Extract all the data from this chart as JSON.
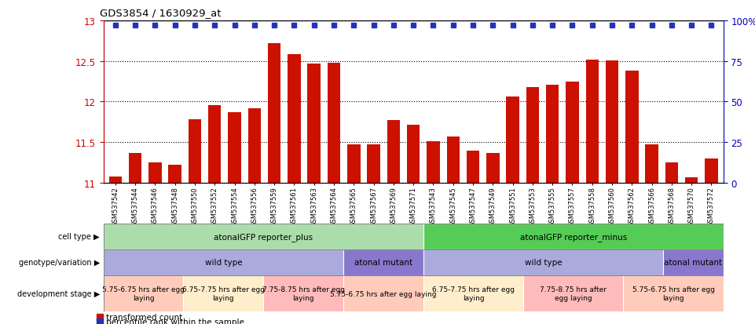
{
  "title": "GDS3854 / 1630929_at",
  "samples": [
    "GSM537542",
    "GSM537544",
    "GSM537546",
    "GSM537548",
    "GSM537550",
    "GSM537552",
    "GSM537554",
    "GSM537556",
    "GSM537559",
    "GSM537561",
    "GSM537563",
    "GSM537564",
    "GSM537565",
    "GSM537567",
    "GSM537569",
    "GSM537571",
    "GSM537543",
    "GSM537545",
    "GSM537547",
    "GSM537549",
    "GSM537551",
    "GSM537553",
    "GSM537555",
    "GSM537557",
    "GSM537558",
    "GSM537560",
    "GSM537562",
    "GSM537566",
    "GSM537568",
    "GSM537570",
    "GSM537572"
  ],
  "bar_values": [
    11.08,
    11.37,
    11.25,
    11.22,
    11.78,
    11.96,
    11.87,
    11.92,
    12.72,
    12.58,
    12.47,
    12.48,
    11.47,
    11.47,
    11.77,
    11.71,
    11.51,
    11.57,
    11.4,
    11.37,
    12.06,
    12.18,
    12.21,
    12.25,
    12.52,
    12.51,
    12.38,
    11.47,
    11.25,
    11.07,
    11.3
  ],
  "ylim_min": 11.0,
  "ylim_max": 13.0,
  "yticks_left": [
    11.0,
    11.5,
    12.0,
    12.5,
    13.0
  ],
  "ytick_left_labels": [
    "11",
    "11.5",
    "12",
    "12.5",
    "13"
  ],
  "yticks_right_vals": [
    0,
    25,
    50,
    75,
    100
  ],
  "ytick_right_labels": [
    "0",
    "25",
    "50",
    "75",
    "100%"
  ],
  "bar_color": "#cc1100",
  "dot_color": "#2233bb",
  "dotted_gridlines": [
    11.5,
    12.0,
    12.5
  ],
  "cell_type_rows": [
    {
      "label": "atonalGFP reporter_plus",
      "start": 0,
      "end": 16,
      "color": "#aaddaa"
    },
    {
      "label": "atonalGFP reporter_minus",
      "start": 16,
      "end": 31,
      "color": "#55cc55"
    }
  ],
  "genotype_rows": [
    {
      "label": "wild type",
      "start": 0,
      "end": 12,
      "color": "#aaaadd"
    },
    {
      "label": "atonal mutant",
      "start": 12,
      "end": 16,
      "color": "#8877cc"
    },
    {
      "label": "wild type",
      "start": 16,
      "end": 28,
      "color": "#aaaadd"
    },
    {
      "label": "atonal mutant",
      "start": 28,
      "end": 31,
      "color": "#8877cc"
    }
  ],
  "dev_stage_rows": [
    {
      "label": "5.75-6.75 hrs after egg\nlaying",
      "start": 0,
      "end": 4,
      "color": "#ffccbb"
    },
    {
      "label": "6.75-7.75 hrs after egg\nlaying",
      "start": 4,
      "end": 8,
      "color": "#ffeecc"
    },
    {
      "label": "7.75-8.75 hrs after egg\nlaying",
      "start": 8,
      "end": 12,
      "color": "#ffbbbb"
    },
    {
      "label": "5.75-6.75 hrs after egg laying",
      "start": 12,
      "end": 16,
      "color": "#ffccbb"
    },
    {
      "label": "6.75-7.75 hrs after egg\nlaying",
      "start": 16,
      "end": 21,
      "color": "#ffeecc"
    },
    {
      "label": "7.75-8.75 hrs after\negg laying",
      "start": 21,
      "end": 26,
      "color": "#ffbbbb"
    },
    {
      "label": "5.75-6.75 hrs after egg\nlaying",
      "start": 26,
      "end": 31,
      "color": "#ffccbb"
    }
  ],
  "legend_bar_color": "#cc1100",
  "legend_dot_color": "#2233bb",
  "legend_bar_label": "transformed count",
  "legend_dot_label": "percentile rank within the sample"
}
